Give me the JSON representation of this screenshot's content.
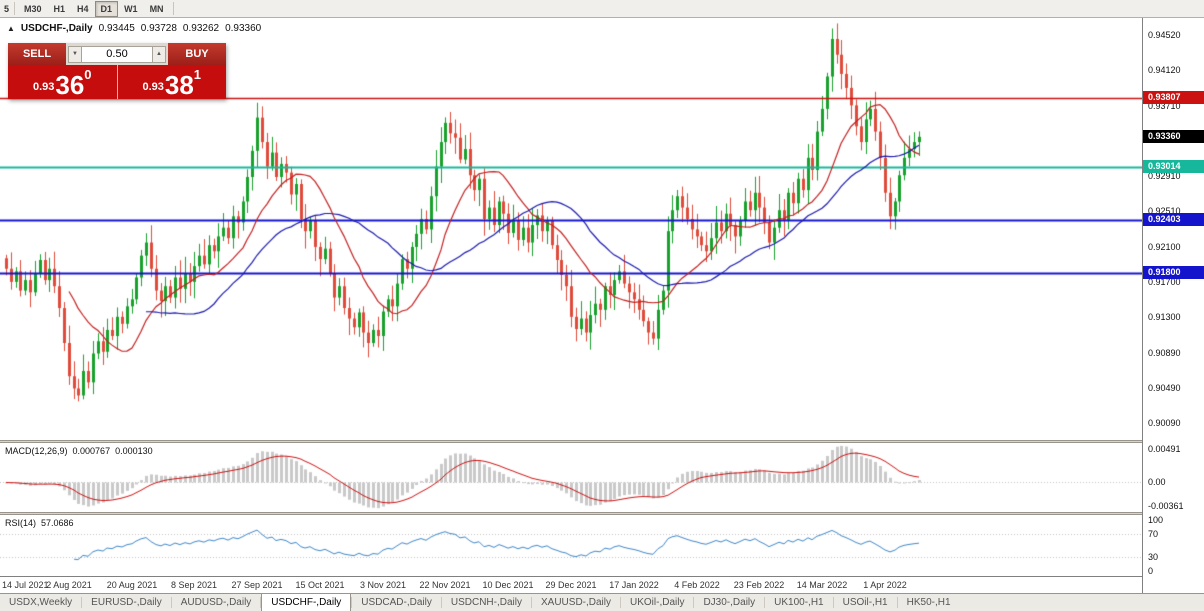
{
  "toolbar": {
    "left_partial": "5",
    "timeframes": [
      "M30",
      "H1",
      "H4",
      "D1",
      "W1",
      "MN"
    ],
    "active_timeframe": "D1"
  },
  "chart": {
    "toggle_icon": "▲",
    "symbol_label": "USDCHF-,Daily",
    "open": "0.93445",
    "high": "0.93728",
    "low": "0.93262",
    "close": "0.93360"
  },
  "trade": {
    "sell_label": "SELL",
    "buy_label": "BUY",
    "volume": "0.50",
    "spinner_down_icon": "▼",
    "spinner_up_icon": "▲",
    "sell": {
      "prefix": "0.93",
      "big": "36",
      "sup": "0"
    },
    "buy": {
      "prefix": "0.93",
      "big": "38",
      "sup": "1"
    }
  },
  "price_axis": {
    "labels": [
      "0.94520",
      "0.94120",
      "0.93710",
      "0.92910",
      "0.92510",
      "0.92100",
      "0.91700",
      "0.91300",
      "0.90890",
      "0.90490",
      "0.90090"
    ],
    "current_price_tag": {
      "text": "0.93360",
      "value": 0.9336,
      "bg": "#000000"
    }
  },
  "hlines": [
    {
      "name": "resistance-line",
      "text": "0.93807",
      "value": 0.93807,
      "color": "#cc1111",
      "width": 1.5
    },
    {
      "name": "support-line-teal",
      "text": "0.93014",
      "value": 0.93014,
      "color": "#16b79a",
      "width": 2
    },
    {
      "name": "support-line-blue-upper",
      "text": "0.92403",
      "value": 0.92403,
      "color": "#1414cc",
      "width": 2
    },
    {
      "name": "support-line-blue-lower",
      "text": "0.91800",
      "value": 0.918,
      "color": "#1414cc",
      "width": 2
    }
  ],
  "macd": {
    "label": "MACD(12,26,9)",
    "main_value": "0.000767",
    "signal_value": "0.000130",
    "fast": 12,
    "slow": 26,
    "signal": 9,
    "axis": [
      {
        "text": "0.00491",
        "value": 0.00491
      },
      {
        "text": "0.00",
        "value": 0
      },
      {
        "text": "-0.00361",
        "value": -0.00361
      }
    ]
  },
  "rsi": {
    "label": "RSI(14)",
    "value": "57.0686",
    "period": 14,
    "levels": [
      70,
      30
    ],
    "axis": [
      {
        "text": "100",
        "value": 100
      },
      {
        "text": "70",
        "value": 70
      },
      {
        "text": "30",
        "value": 30
      },
      {
        "text": "0",
        "value": 0
      }
    ]
  },
  "x_axis": {
    "candles_per_label": 13,
    "labels": [
      "14 Jul 2021",
      "2 Aug 2021",
      "20 Aug 2021",
      "8 Sep 2021",
      "27 Sep 2021",
      "15 Oct 2021",
      "3 Nov 2021",
      "22 Nov 2021",
      "10 Dec 2021",
      "29 Dec 2021",
      "17 Jan 2022",
      "4 Feb 2022",
      "23 Feb 2022",
      "14 Mar 2022",
      "1 Apr 2022"
    ]
  },
  "tabs": [
    {
      "label": "USDX,Weekly",
      "active": false
    },
    {
      "label": "EURUSD-,Daily",
      "active": false
    },
    {
      "label": "AUDUSD-,Daily",
      "active": false
    },
    {
      "label": "USDCHF-,Daily",
      "active": true
    },
    {
      "label": "USDCAD-,Daily",
      "active": false
    },
    {
      "label": "USDCNH-,Daily",
      "active": false
    },
    {
      "label": "XAUUSD-,Daily",
      "active": false
    },
    {
      "label": "UKOil-,Daily",
      "active": false
    },
    {
      "label": "DJ30-,Daily",
      "active": false
    },
    {
      "label": "UK100-,H1",
      "active": false
    },
    {
      "label": "USOil-,H1",
      "active": false
    },
    {
      "label": "HK50-,H1",
      "active": false
    }
  ],
  "colors": {
    "up": "#18a12c",
    "down": "#df4b3b",
    "ma_fast": "#c22020",
    "ma_slow": "#1a1aae",
    "macd_hist": "#c9c9c9",
    "macd_hist_edge": "#b4b4b4",
    "macd_signal": "#cc1111",
    "rsi_line": "#3e86c8",
    "grid_dotted": "#c0c0c0"
  },
  "chart_data": {
    "type": "candlestick",
    "title": "USDCHF-,Daily",
    "symbol": "USDCHF-",
    "period": "Daily",
    "last_open": 0.93445,
    "last_high": 0.93728,
    "last_low": 0.93262,
    "last_close": 0.9336,
    "y_min": 0.8989,
    "y_max": 0.9472,
    "visible_fraction": 0.808,
    "ma_fast_period": 14,
    "ma_slow_period": 30,
    "closes": [
      0.9185,
      0.917,
      0.9182,
      0.916,
      0.9172,
      0.9158,
      0.918,
      0.9195,
      0.9172,
      0.9185,
      0.9165,
      0.914,
      0.91,
      0.9062,
      0.9048,
      0.904,
      0.9068,
      0.9055,
      0.9088,
      0.9102,
      0.909,
      0.9115,
      0.9108,
      0.913,
      0.9122,
      0.9142,
      0.915,
      0.9175,
      0.92,
      0.9215,
      0.9185,
      0.916,
      0.9148,
      0.9165,
      0.9152,
      0.9175,
      0.9162,
      0.918,
      0.917,
      0.9188,
      0.92,
      0.919,
      0.9212,
      0.9205,
      0.9222,
      0.9232,
      0.922,
      0.9245,
      0.9238,
      0.9262,
      0.929,
      0.932,
      0.9358,
      0.933,
      0.9302,
      0.9318,
      0.929,
      0.9305,
      0.9295,
      0.927,
      0.9282,
      0.9242,
      0.9228,
      0.924,
      0.921,
      0.9196,
      0.9208,
      0.918,
      0.9152,
      0.9165,
      0.914,
      0.9128,
      0.9118,
      0.9135,
      0.9112,
      0.91,
      0.9115,
      0.9108,
      0.9136,
      0.915,
      0.9142,
      0.9168,
      0.9196,
      0.9185,
      0.921,
      0.9225,
      0.9242,
      0.923,
      0.9268,
      0.9302,
      0.933,
      0.9352,
      0.934,
      0.9335,
      0.931,
      0.9322,
      0.9292,
      0.9275,
      0.9288,
      0.9242,
      0.9255,
      0.9235,
      0.9262,
      0.9248,
      0.9226,
      0.924,
      0.9218,
      0.9232,
      0.9215,
      0.9235,
      0.9246,
      0.9228,
      0.924,
      0.9212,
      0.9195,
      0.9178,
      0.9165,
      0.913,
      0.9116,
      0.9128,
      0.9112,
      0.9132,
      0.9145,
      0.9138,
      0.9165,
      0.9155,
      0.9172,
      0.9182,
      0.9168,
      0.9158,
      0.915,
      0.9138,
      0.9125,
      0.9112,
      0.9105,
      0.9138,
      0.916,
      0.9228,
      0.9252,
      0.9268,
      0.9255,
      0.9242,
      0.923,
      0.9222,
      0.9212,
      0.9205,
      0.922,
      0.9238,
      0.9228,
      0.9248,
      0.9235,
      0.9222,
      0.924,
      0.9262,
      0.9252,
      0.9272,
      0.9255,
      0.9238,
      0.9215,
      0.9232,
      0.9252,
      0.924,
      0.9272,
      0.926,
      0.9288,
      0.9275,
      0.9312,
      0.9298,
      0.9342,
      0.9368,
      0.9405,
      0.9448,
      0.943,
      0.9408,
      0.9392,
      0.9372,
      0.9348,
      0.933,
      0.9356,
      0.9368,
      0.9342,
      0.9312,
      0.9272,
      0.9245,
      0.9262,
      0.9292,
      0.9312,
      0.9322,
      0.933,
      0.9336
    ]
  }
}
